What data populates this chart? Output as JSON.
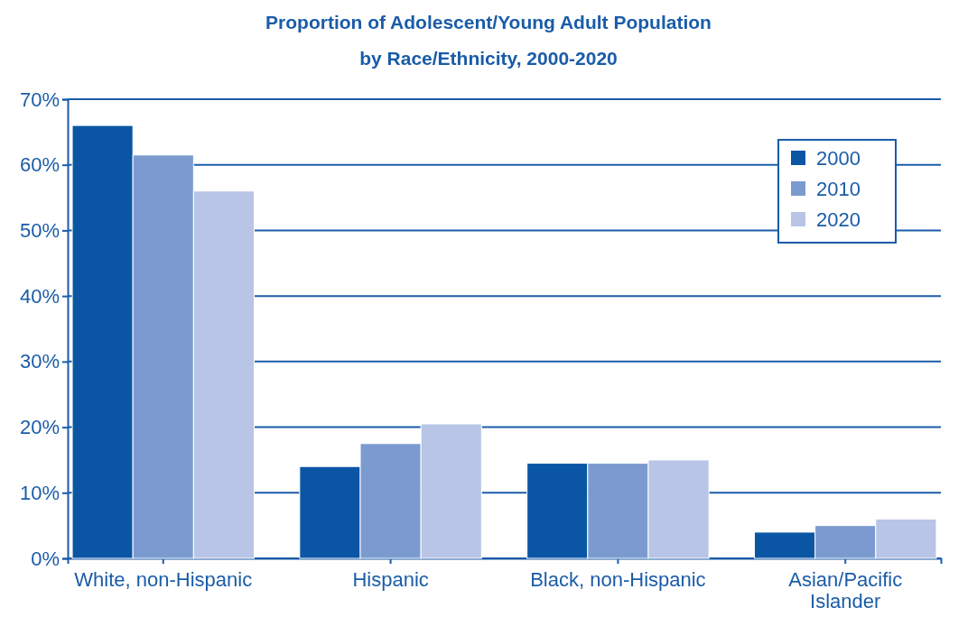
{
  "chart_data": {
    "type": "bar",
    "title": "Proportion of Adolescent/Young Adult Population",
    "subtitle": "by Race/Ethnicity, 2000-2020",
    "categories": [
      "White, non-Hispanic",
      "Hispanic",
      "Black, non-Hispanic",
      "Asian/Pacific Islander"
    ],
    "series": [
      {
        "name": "2000",
        "color": "#0a56a5",
        "values": [
          66,
          14,
          14.5,
          4
        ]
      },
      {
        "name": "2010",
        "color": "#7b9bd0",
        "values": [
          61.5,
          17.5,
          14.5,
          5
        ]
      },
      {
        "name": "2020",
        "color": "#b9c5e6",
        "values": [
          56,
          20.5,
          15,
          6
        ]
      }
    ],
    "ylim": [
      0,
      70
    ],
    "yticks": [
      {
        "value": 0,
        "label": "0%"
      },
      {
        "value": 10,
        "label": "10%"
      },
      {
        "value": 20,
        "label": "20%"
      },
      {
        "value": 30,
        "label": "30%"
      },
      {
        "value": 40,
        "label": "40%"
      },
      {
        "value": 50,
        "label": "50%"
      },
      {
        "value": 60,
        "label": "60%"
      },
      {
        "value": 70,
        "label": "70%"
      }
    ],
    "grid": "y",
    "legend": "top right"
  }
}
